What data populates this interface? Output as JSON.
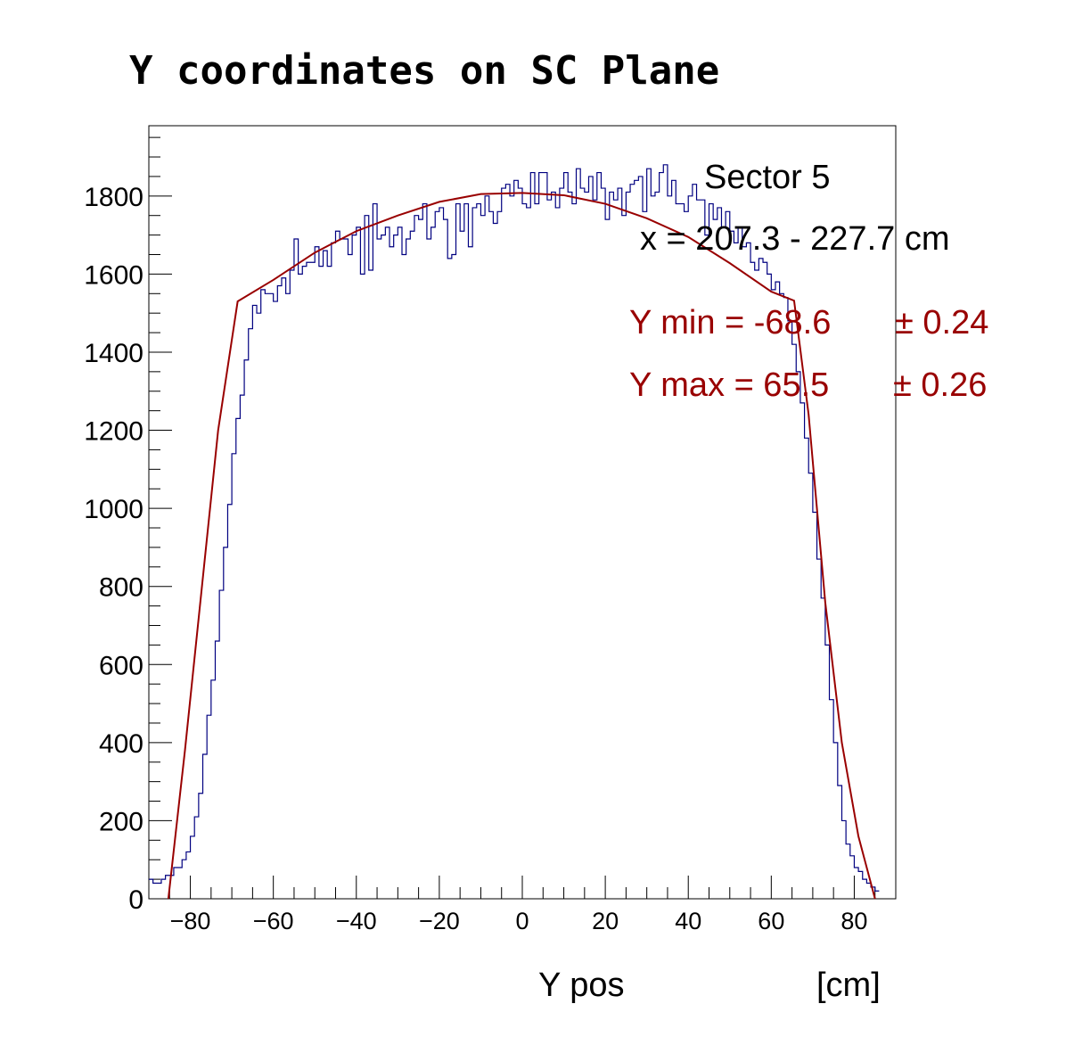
{
  "chart_data": {
    "type": "line",
    "title": "Y coordinates on SC Plane",
    "xlabel": "Y pos",
    "xunit": "[cm]",
    "xlim": [
      -90,
      90
    ],
    "ylim": [
      0,
      1980
    ],
    "x_ticks": [
      -80,
      -60,
      -40,
      -20,
      0,
      20,
      40,
      60,
      80
    ],
    "x_tick_labels": [
      "−80",
      "−60",
      "−40",
      "−20",
      "0",
      "20",
      "40",
      "60",
      "80"
    ],
    "y_ticks": [
      0,
      200,
      400,
      600,
      800,
      1000,
      1200,
      1400,
      1600,
      1800
    ],
    "y_tick_labels": [
      "0",
      "200",
      "400",
      "600",
      "800",
      "1000",
      "1200",
      "1400",
      "1600",
      "1800"
    ],
    "grid": false,
    "annotations": {
      "sector": "Sector 5",
      "xrange": "x = 207.3 - 227.7 cm",
      "ymin_label": "Y min = -68.6",
      "ymin_err": "± 0.24",
      "ymax_label": "Y max = 65.5",
      "ymax_err": "± 0.26"
    },
    "colors": {
      "histogram": "#000080",
      "fit": "#990000",
      "annotation_fit": "#990000"
    },
    "series": [
      {
        "kind": "histogram",
        "bin_width": 1,
        "x_start": -90,
        "values": [
          50,
          40,
          40,
          50,
          60,
          60,
          80,
          80,
          100,
          120,
          160,
          210,
          270,
          370,
          470,
          560,
          660,
          790,
          900,
          1010,
          1140,
          1230,
          1290,
          1380,
          1460,
          1520,
          1500,
          1560,
          1550,
          1550,
          1530,
          1570,
          1590,
          1550,
          1610,
          1690,
          1600,
          1620,
          1630,
          1630,
          1670,
          1620,
          1660,
          1620,
          1680,
          1710,
          1690,
          1690,
          1650,
          1700,
          1720,
          1600,
          1750,
          1610,
          1780,
          1690,
          1700,
          1720,
          1670,
          1700,
          1720,
          1650,
          1690,
          1710,
          1750,
          1740,
          1780,
          1690,
          1720,
          1760,
          1770,
          1740,
          1640,
          1650,
          1780,
          1710,
          1780,
          1670,
          1770,
          1780,
          1750,
          1800,
          1760,
          1730,
          1760,
          1820,
          1830,
          1800,
          1840,
          1820,
          1780,
          1770,
          1860,
          1780,
          1860,
          1860,
          1790,
          1810,
          1770,
          1820,
          1860,
          1810,
          1780,
          1870,
          1820,
          1810,
          1850,
          1790,
          1860,
          1820,
          1740,
          1810,
          1790,
          1820,
          1750,
          1810,
          1830,
          1840,
          1850,
          1760,
          1870,
          1800,
          1810,
          1860,
          1880,
          1800,
          1840,
          1780,
          1780,
          1760,
          1800,
          1830,
          1790,
          1790,
          1700,
          1780,
          1740,
          1770,
          1720,
          1760,
          1710,
          1680,
          1720,
          1670,
          1680,
          1630,
          1610,
          1640,
          1630,
          1600,
          1560,
          1580,
          1550,
          1540,
          1480,
          1420,
          1350,
          1270,
          1180,
          1090,
          990,
          870,
          770,
          650,
          510,
          400,
          290,
          200,
          140,
          110,
          80,
          70,
          50,
          40,
          30,
          20
        ]
      },
      {
        "kind": "fit",
        "name": "",
        "x": [
          -85.3,
          -81.3,
          -77.3,
          -73.3,
          -68.6,
          -60,
          -50,
          -40,
          -30,
          -20,
          -10,
          0,
          10,
          20,
          30,
          40,
          50,
          60,
          65.5,
          69,
          73,
          77,
          81,
          85
        ],
        "y": [
          0,
          380,
          790,
          1200,
          1530,
          1585,
          1655,
          1710,
          1750,
          1785,
          1805,
          1808,
          1802,
          1780,
          1743,
          1695,
          1628,
          1555,
          1532,
          1240,
          760,
          400,
          160,
          0
        ]
      }
    ]
  }
}
